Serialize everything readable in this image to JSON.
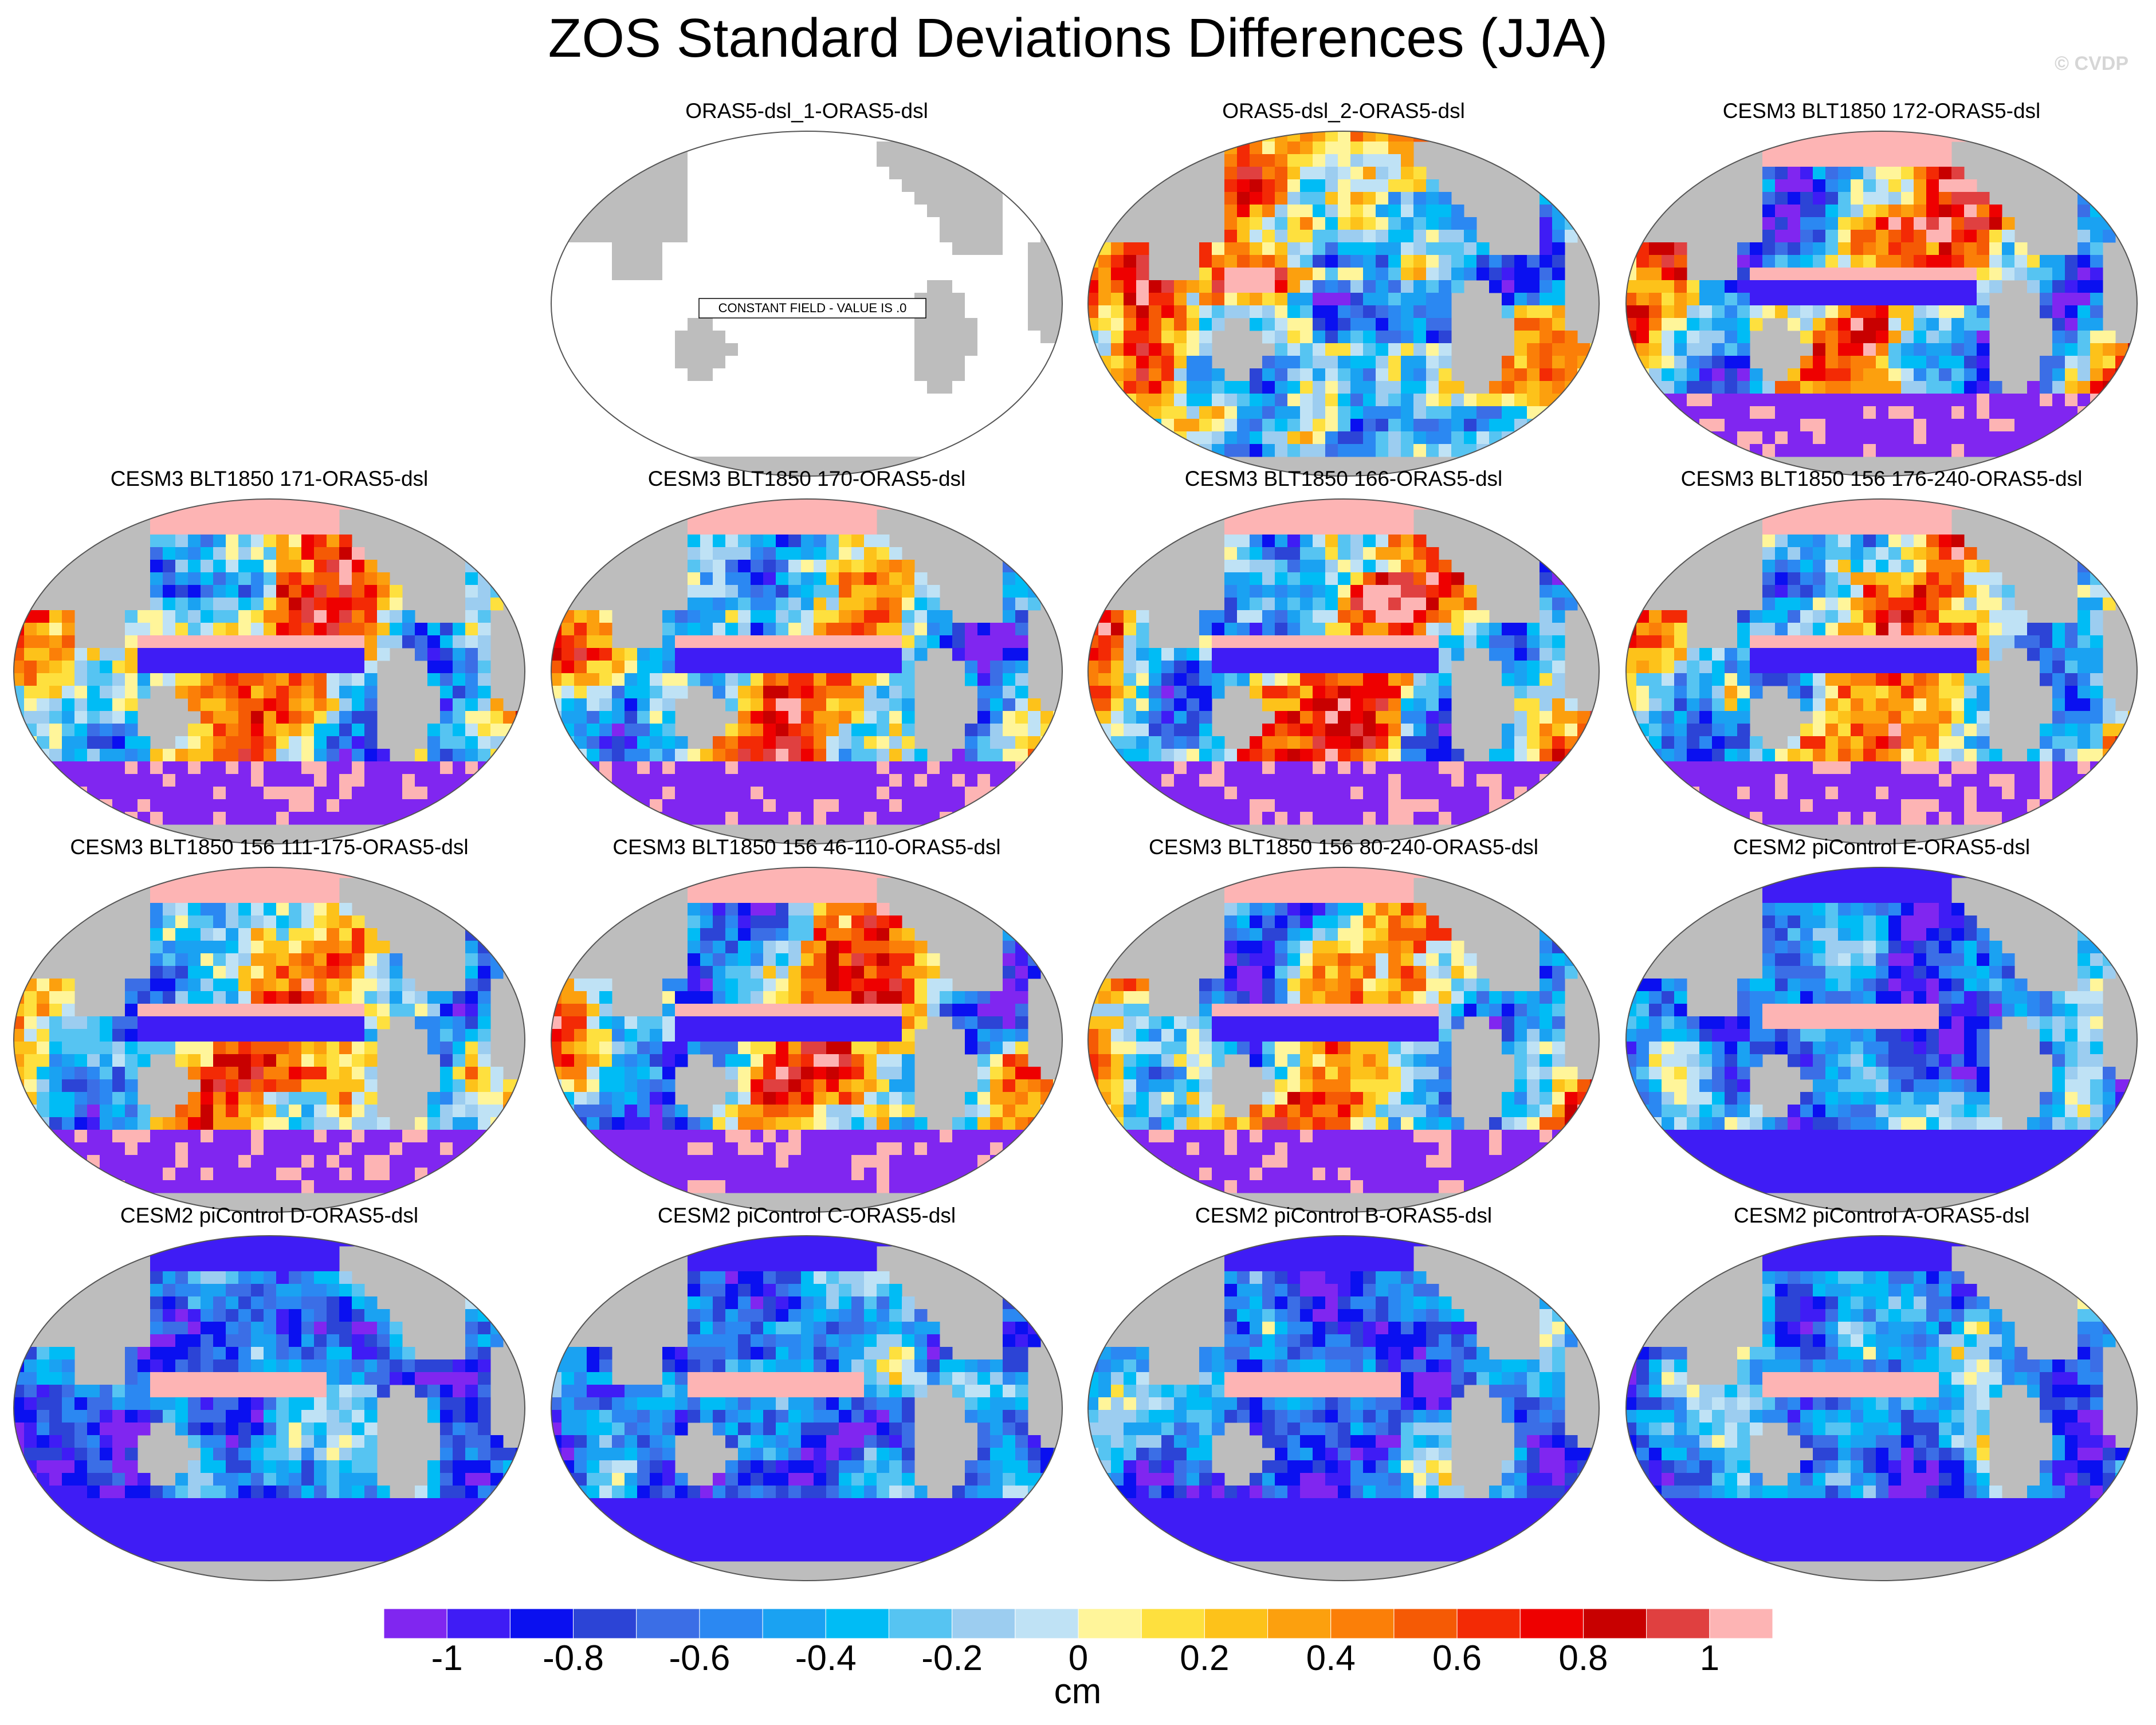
{
  "title": "ZOS Standard Deviations Differences (JJA)",
  "credit": "© CVDP",
  "constant_field_label": "CONSTANT FIELD - VALUE IS .0",
  "panels": [
    {
      "title": "ORAS5-dsl_1-ORAS5-dsl",
      "pattern": "constant"
    },
    {
      "title": "ORAS5-dsl_2-ORAS5-dsl",
      "pattern": "oras"
    },
    {
      "title": "CESM3 BLT1850 172-ORAS5-dsl",
      "pattern": "cesm3"
    },
    {
      "title": "CESM3 BLT1850 171-ORAS5-dsl",
      "pattern": "cesm3"
    },
    {
      "title": "CESM3 BLT1850 170-ORAS5-dsl",
      "pattern": "cesm3"
    },
    {
      "title": "CESM3 BLT1850 166-ORAS5-dsl",
      "pattern": "cesm3"
    },
    {
      "title": "CESM3 BLT1850 156 176-240-ORAS5-dsl",
      "pattern": "cesm3"
    },
    {
      "title": "CESM3 BLT1850 156 111-175-ORAS5-dsl",
      "pattern": "cesm3"
    },
    {
      "title": "CESM3 BLT1850 156 46-110-ORAS5-dsl",
      "pattern": "cesm3"
    },
    {
      "title": "CESM3 BLT1850 156 80-240-ORAS5-dsl",
      "pattern": "cesm3"
    },
    {
      "title": "CESM2 piControl E-ORAS5-dsl",
      "pattern": "cesm2"
    },
    {
      "title": "CESM2 piControl D-ORAS5-dsl",
      "pattern": "cesm2"
    },
    {
      "title": "CESM2 piControl C-ORAS5-dsl",
      "pattern": "cesm2"
    },
    {
      "title": "CESM2 piControl B-ORAS5-dsl",
      "pattern": "cesm2"
    },
    {
      "title": "CESM2 piControl A-ORAS5-dsl",
      "pattern": "cesm2"
    }
  ],
  "colorbar": {
    "colors": [
      "#8026f0",
      "#3f1cf5",
      "#0a10f0",
      "#2c44d6",
      "#3b6ee6",
      "#2b88f2",
      "#1aa2f2",
      "#00bcf5",
      "#56c4f2",
      "#9ccdf0",
      "#bfe2f5",
      "#fff59a",
      "#fee03e",
      "#fdc21a",
      "#fca00e",
      "#fb7f08",
      "#f55a05",
      "#f32a05",
      "#ee0000",
      "#c80000",
      "#e04040",
      "#fdb4b4"
    ],
    "tick_labels": [
      "-1",
      "-0.8",
      "-0.6",
      "-0.4",
      "-0.2",
      "0",
      "0.2",
      "0.4",
      "0.6",
      "0.8",
      "1"
    ],
    "units": "cm"
  },
  "land_color": "#bdbdbd"
}
